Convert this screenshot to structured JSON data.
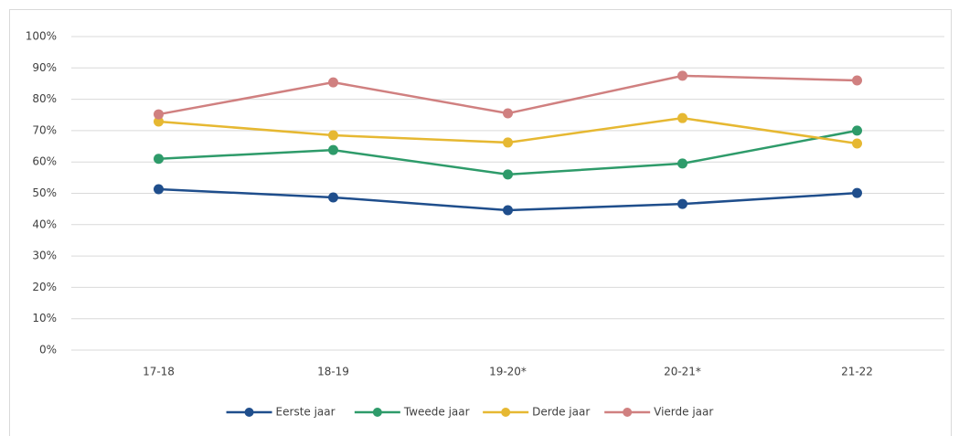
{
  "chart_data": {
    "type": "line",
    "categories": [
      "17-18",
      "18-19",
      "19-20*",
      "20-21*",
      "21-22"
    ],
    "series": [
      {
        "name": "Eerste jaar",
        "color": "#1f4e8c",
        "values": [
          51.3,
          48.7,
          44.6,
          46.6,
          50.1
        ]
      },
      {
        "name": "Tweede jaar",
        "color": "#2e9b6a",
        "values": [
          61,
          63.8,
          56,
          59.5,
          70
        ]
      },
      {
        "name": "Derde jaar",
        "color": "#e6b832",
        "values": [
          72.9,
          68.5,
          66.2,
          74,
          65.9
        ]
      },
      {
        "name": "Vierde jaar",
        "color": "#d08080",
        "values": [
          75.2,
          85.4,
          75.5,
          87.5,
          86
        ]
      }
    ],
    "ylim": [
      0,
      100
    ],
    "yticks": [
      {
        "value": 0,
        "label": "0%"
      },
      {
        "value": 10,
        "label": "10%"
      },
      {
        "value": 20,
        "label": "20%"
      },
      {
        "value": 30,
        "label": "30%"
      },
      {
        "value": 40,
        "label": "40%"
      },
      {
        "value": 50,
        "label": "50%"
      },
      {
        "value": 60,
        "label": "60%"
      },
      {
        "value": 70,
        "label": "70%"
      },
      {
        "value": 80,
        "label": "80%"
      },
      {
        "value": 90,
        "label": "90%"
      },
      {
        "value": 100,
        "label": "100%"
      }
    ],
    "grid": true,
    "legend": "bottom"
  }
}
